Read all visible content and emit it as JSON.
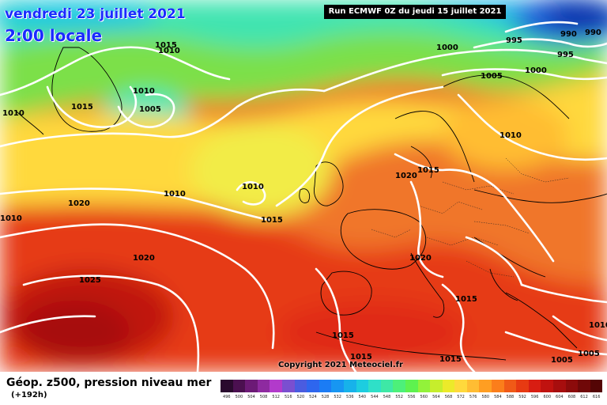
{
  "header": {
    "date": "vendredi 23 juillet 2021",
    "time": "2:00 locale"
  },
  "run_info": "Run ECMWF 0Z du jeudi 15 juillet 2021",
  "copyright": "Copyright 2021 Meteociel.fr",
  "legend": {
    "title": "Géop. z500, pression niveau mer",
    "subtitle": "(+192h)",
    "colors": [
      "#2a0a2e",
      "#4b1050",
      "#6c1a76",
      "#8e2aa0",
      "#b23acb",
      "#7a4fd0",
      "#4a5ce0",
      "#2e66ee",
      "#1b7cf5",
      "#1796f2",
      "#17b2ea",
      "#1dcde0",
      "#2fe0c8",
      "#3ee8a6",
      "#4df07a",
      "#5ef24f",
      "#92f23a",
      "#c6ee2c",
      "#ecea2a",
      "#ffd93c",
      "#ffbd33",
      "#ff9e22",
      "#fb7e1b",
      "#f05a17",
      "#e73a12",
      "#d81d12",
      "#c0120f",
      "#a70e0e",
      "#8c0b0b",
      "#700808",
      "#540505",
      "#3a0303",
      "#100000"
    ],
    "ticks": [
      "496",
      "500",
      "504",
      "508",
      "512",
      "516",
      "520",
      "524",
      "528",
      "532",
      "536",
      "540",
      "544",
      "548",
      "552",
      "556",
      "560",
      "564",
      "568",
      "572",
      "576",
      "580",
      "584",
      "588",
      "592",
      "596",
      "600",
      "604",
      "608",
      "612",
      "616"
    ]
  },
  "isobar_labels": [
    {
      "text": "1015"
    },
    {
      "text": "1010"
    },
    {
      "text": "1015"
    },
    {
      "text": "1010"
    },
    {
      "text": "1005"
    },
    {
      "text": "1010"
    },
    {
      "text": "1020"
    },
    {
      "text": "1010"
    },
    {
      "text": "1010"
    },
    {
      "text": "1015"
    },
    {
      "text": "1020"
    },
    {
      "text": "1025"
    },
    {
      "text": "1000"
    },
    {
      "text": "995"
    },
    {
      "text": "990"
    },
    {
      "text": "990"
    },
    {
      "text": "995"
    },
    {
      "text": "1000"
    },
    {
      "text": "1005"
    },
    {
      "text": "1010"
    },
    {
      "text": "1020"
    },
    {
      "text": "1015"
    },
    {
      "text": "1020"
    },
    {
      "text": "1015"
    },
    {
      "text": "1015"
    },
    {
      "text": "1015"
    },
    {
      "text": "1015"
    },
    {
      "text": "1005"
    },
    {
      "text": "1005"
    },
    {
      "text": "1010"
    },
    {
      "text": "1010"
    }
  ]
}
